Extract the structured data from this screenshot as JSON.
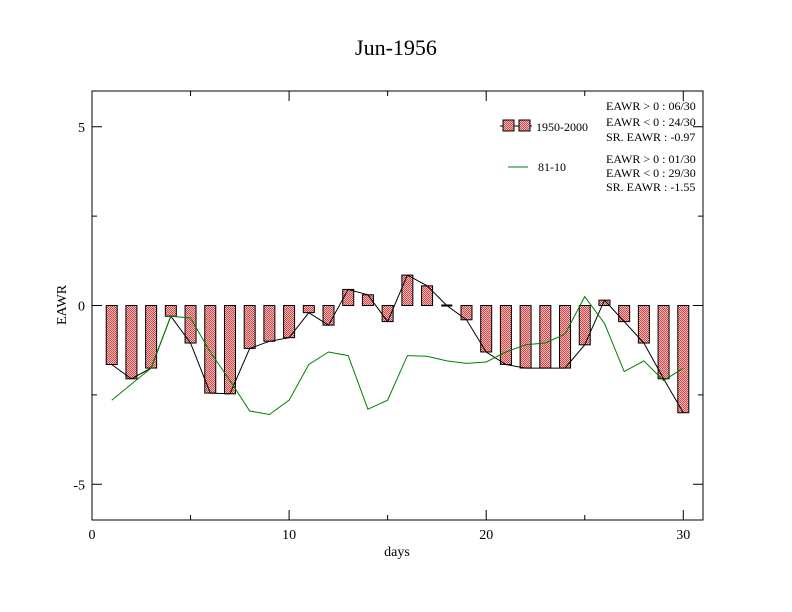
{
  "chart_data": {
    "type": "bar",
    "title": "Jun-1956",
    "xlabel": "days",
    "ylabel": "EAWR",
    "xlim": [
      0,
      31
    ],
    "ylim": [
      -6,
      6
    ],
    "x_ticks": [
      0,
      10,
      20,
      30
    ],
    "y_ticks": [
      5,
      0,
      -5
    ],
    "y_tick_labels": [
      "5",
      "0",
      "-5"
    ],
    "legend_position": "top-right",
    "grid": false,
    "series": [
      {
        "name": "1950-2000",
        "kind": "bar+line",
        "bar_color": "#e08080",
        "line_color": "#000000",
        "x": [
          1,
          2,
          3,
          4,
          5,
          6,
          7,
          8,
          9,
          10,
          11,
          12,
          13,
          14,
          15,
          16,
          17,
          18,
          19,
          20,
          21,
          22,
          23,
          24,
          25,
          26,
          27,
          28,
          29,
          30
        ],
        "values": [
          -1.65,
          -2.05,
          -1.75,
          -0.3,
          -1.05,
          -2.45,
          -2.47,
          -1.2,
          -1.0,
          -0.9,
          -0.2,
          -0.55,
          0.45,
          0.3,
          -0.45,
          0.85,
          0.55,
          0.0,
          -0.4,
          -1.3,
          -1.65,
          -1.75,
          -1.75,
          -1.75,
          -1.1,
          0.15,
          -0.45,
          -1.05,
          -2.05,
          -3.0
        ]
      },
      {
        "name": "81-10",
        "kind": "line",
        "line_color": "#008000",
        "x": [
          1,
          2,
          3,
          4,
          5,
          6,
          7,
          8,
          9,
          10,
          11,
          12,
          13,
          14,
          15,
          16,
          17,
          18,
          19,
          20,
          21,
          22,
          23,
          24,
          25,
          26,
          27,
          28,
          29,
          30
        ],
        "values": [
          -2.65,
          -2.2,
          -1.75,
          -0.3,
          -0.35,
          -1.3,
          -2.1,
          -2.95,
          -3.05,
          -2.65,
          -1.65,
          -1.3,
          -1.4,
          -2.9,
          -2.65,
          -1.4,
          -1.42,
          -1.55,
          -1.62,
          -1.58,
          -1.3,
          -1.1,
          -1.05,
          -0.8,
          0.25,
          -0.5,
          -1.85,
          -1.55,
          -2.1,
          -1.75
        ]
      }
    ],
    "annotations": {
      "group1": [
        "EAWR > 0 : 06/30",
        "EAWR < 0 : 24/30",
        "SR. EAWR : -0.97"
      ],
      "group2": [
        "EAWR > 0 : 01/30",
        "EAWR < 0 : 29/30",
        "SR. EAWR : -1.55"
      ]
    }
  }
}
